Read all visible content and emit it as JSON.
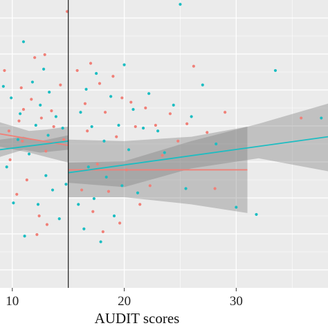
{
  "chart_data": {
    "type": "scatter",
    "title": "",
    "xlabel": "AUDIT scores",
    "ylabel": "",
    "xlim": [
      8.9,
      38.2
    ],
    "ylim": [
      -1.0,
      1.0
    ],
    "x_ticks": [
      10,
      20,
      30
    ],
    "x_tick_labels": [
      "10",
      "20",
      "30"
    ],
    "grid": true,
    "legend": "none",
    "background": "#ebebeb",
    "grid_color": "#ffffff",
    "cutoff_line_x": 15,
    "series": [
      {
        "color": "#f08078",
        "points": [
          [
            9.3,
            0.51
          ],
          [
            9.7,
            0.09
          ],
          [
            9.8,
            -0.11
          ],
          [
            10.4,
            -0.35
          ],
          [
            10.6,
            0.16
          ],
          [
            10.8,
            0.39
          ],
          [
            10.9,
            0.02
          ],
          [
            11.0,
            0.24
          ],
          [
            11.3,
            -0.25
          ],
          [
            11.7,
            0.31
          ],
          [
            12.0,
            0.6
          ],
          [
            12.2,
            -0.63
          ],
          [
            12.4,
            -0.5
          ],
          [
            12.6,
            0.18
          ],
          [
            12.9,
            0.62
          ],
          [
            13.0,
            -0.05
          ],
          [
            13.1,
            -0.56
          ],
          [
            13.5,
            0.23
          ],
          [
            13.7,
            0.12
          ],
          [
            14.3,
            0.41
          ],
          [
            14.6,
            0.03
          ],
          [
            14.9,
            0.92
          ],
          [
            15.8,
            0.51
          ],
          [
            16.2,
            -0.32
          ],
          [
            16.5,
            0.28
          ],
          [
            16.7,
            0.09
          ],
          [
            17.0,
            0.56
          ],
          [
            17.2,
            -0.47
          ],
          [
            17.6,
            -0.14
          ],
          [
            17.8,
            0.42
          ],
          [
            18.1,
            -0.61
          ],
          [
            18.3,
            0.22
          ],
          [
            18.6,
            -0.33
          ],
          [
            19.0,
            0.47
          ],
          [
            19.3,
            0.05
          ],
          [
            19.6,
            -0.55
          ],
          [
            19.8,
            0.32
          ],
          [
            20.2,
            -0.18
          ],
          [
            20.6,
            0.29
          ],
          [
            21.0,
            0.12
          ],
          [
            21.4,
            -0.42
          ],
          [
            21.9,
            0.25
          ],
          [
            22.3,
            -0.29
          ],
          [
            22.8,
            0.13
          ],
          [
            23.4,
            -0.08
          ],
          [
            24.1,
            0.21
          ],
          [
            24.8,
            0.02
          ],
          [
            25.6,
            0.14
          ],
          [
            26.2,
            0.54
          ],
          [
            27.4,
            0.08
          ],
          [
            28.1,
            -0.31
          ],
          [
            29.0,
            0.22
          ],
          [
            35.8,
            0.18
          ]
        ]
      },
      {
        "color": "#1cbdc2",
        "points": [
          [
            9.2,
            0.4
          ],
          [
            9.5,
            -0.16
          ],
          [
            9.9,
            0.32
          ],
          [
            10.1,
            -0.41
          ],
          [
            10.5,
            0.03
          ],
          [
            10.7,
            0.21
          ],
          [
            11.0,
            0.71
          ],
          [
            11.1,
            -0.64
          ],
          [
            11.5,
            -0.07
          ],
          [
            11.8,
            0.43
          ],
          [
            12.1,
            0.13
          ],
          [
            12.3,
            -0.42
          ],
          [
            12.5,
            0.27
          ],
          [
            12.8,
            0.52
          ],
          [
            13.0,
            -0.22
          ],
          [
            13.2,
            0.06
          ],
          [
            13.3,
            0.36
          ],
          [
            13.6,
            -0.32
          ],
          [
            13.9,
            0.19
          ],
          [
            14.2,
            -0.52
          ],
          [
            14.5,
            0.11
          ],
          [
            14.8,
            -0.28
          ],
          [
            15.9,
            -0.42
          ],
          [
            16.1,
            0.22
          ],
          [
            16.4,
            -0.59
          ],
          [
            16.6,
            0.38
          ],
          [
            16.8,
            -0.16
          ],
          [
            17.1,
            0.12
          ],
          [
            17.3,
            -0.38
          ],
          [
            17.5,
            0.49
          ],
          [
            17.9,
            -0.68
          ],
          [
            18.2,
            0.02
          ],
          [
            18.4,
            -0.23
          ],
          [
            18.8,
            0.33
          ],
          [
            19.1,
            -0.5
          ],
          [
            19.5,
            0.13
          ],
          [
            19.8,
            -0.29
          ],
          [
            20.0,
            0.55
          ],
          [
            20.4,
            -0.04
          ],
          [
            20.8,
            0.24
          ],
          [
            21.2,
            -0.34
          ],
          [
            21.7,
            0.11
          ],
          [
            22.2,
            0.35
          ],
          [
            23.0,
            0.09
          ],
          [
            23.6,
            -0.06
          ],
          [
            24.4,
            0.27
          ],
          [
            25.0,
            0.97
          ],
          [
            25.5,
            -0.31
          ],
          [
            26.0,
            0.19
          ],
          [
            27.0,
            0.41
          ],
          [
            28.2,
            0.0
          ],
          [
            30.0,
            -0.44
          ],
          [
            31.8,
            -0.49
          ],
          [
            33.5,
            0.51
          ],
          [
            37.6,
            0.18
          ]
        ]
      }
    ],
    "fits": [
      {
        "color": "#f08078",
        "points": [
          [
            8.9,
            0.07
          ],
          [
            15,
            -0.01
          ],
          [
            15.0,
            -0.18
          ],
          [
            31,
            -0.18
          ]
        ],
        "ribbon_upper": [
          [
            8.9,
            0.15
          ],
          [
            11.5,
            0.09
          ],
          [
            13,
            0.1
          ],
          [
            15,
            0.12
          ],
          [
            15.0,
            0.03
          ],
          [
            20,
            0.02
          ],
          [
            26,
            0.05
          ],
          [
            31,
            0.12
          ]
        ],
        "ribbon_lower": [
          [
            8.9,
            -0.02
          ],
          [
            11.5,
            -0.06
          ],
          [
            13,
            -0.09
          ],
          [
            15,
            -0.13
          ],
          [
            15.0,
            -0.37
          ],
          [
            20,
            -0.37
          ],
          [
            26,
            -0.42
          ],
          [
            31,
            -0.48
          ]
        ]
      },
      {
        "color": "#1cbdc2",
        "points": [
          [
            8.9,
            -0.04
          ],
          [
            15,
            0.02
          ],
          [
            15.0,
            -0.2
          ],
          [
            38.2,
            0.05
          ]
        ],
        "ribbon_upper": [
          [
            8.9,
            0.03
          ],
          [
            11,
            0.05
          ],
          [
            12.5,
            0.02
          ],
          [
            15,
            0.06
          ],
          [
            15.0,
            -0.13
          ],
          [
            20,
            -0.12
          ],
          [
            26,
            0.02
          ],
          [
            32,
            0.14
          ],
          [
            38.2,
            0.28
          ]
        ],
        "ribbon_lower": [
          [
            8.9,
            -0.09
          ],
          [
            11,
            -0.04
          ],
          [
            12.5,
            -0.06
          ],
          [
            15,
            -0.04
          ],
          [
            15.0,
            -0.27
          ],
          [
            20,
            -0.3
          ],
          [
            26,
            -0.17
          ],
          [
            32,
            -0.1
          ],
          [
            38.2,
            -0.19
          ]
        ]
      }
    ]
  }
}
